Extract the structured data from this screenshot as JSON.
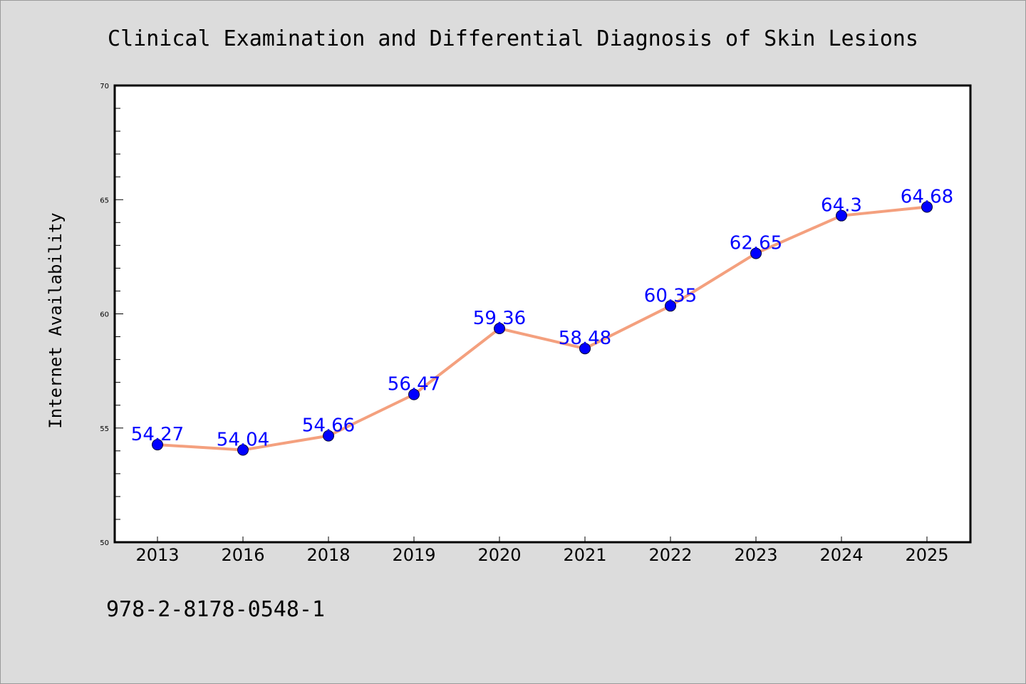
{
  "colors": {
    "figure_background": "#dcdcdc",
    "plot_background": "#ffffff",
    "line": "#f4a07e",
    "marker": "#0000ff",
    "label": "#0000ff"
  },
  "footer": {
    "text": "978-2-8178-0548-1"
  },
  "chart_data": {
    "type": "line",
    "title": "Clinical Examination and Differential Diagnosis of Skin Lesions",
    "xlabel": "",
    "ylabel": "Internet Availability",
    "categories": [
      "2013",
      "2016",
      "2018",
      "2019",
      "2020",
      "2021",
      "2022",
      "2023",
      "2024",
      "2025"
    ],
    "series": [
      {
        "values": [
          54.27,
          54.04,
          54.66,
          56.47,
          59.36,
          58.48,
          60.35,
          62.65,
          64.3,
          64.68
        ],
        "labels": [
          "54.27",
          "54.04",
          "54.66",
          "56.47",
          "59.36",
          "58.48",
          "60.35",
          "62.65",
          "64.3",
          "64.68"
        ]
      }
    ],
    "ylim": [
      50,
      70
    ],
    "yticks": [
      "50",
      "55",
      "60",
      "65",
      "70"
    ],
    "grid": false,
    "legend": "none"
  }
}
